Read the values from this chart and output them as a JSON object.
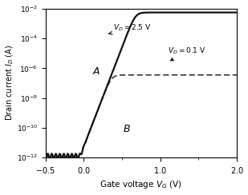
{
  "xlabel": "Gate voltage $V_G$ (V)",
  "ylabel": "Drain current $I_D$ (A)",
  "xlim": [
    -0.5,
    2.0
  ],
  "ylim_log": [
    -12,
    -2
  ],
  "label_A": "A",
  "label_B": "B",
  "label_VD_25": "$V_D=2.5$ V",
  "label_VD_01": "$V_D=0.1$ V",
  "line_color_A": "#111111",
  "line_color_B": "#444444",
  "vth": 0.15,
  "S_slope": 0.075,
  "I_min_A": 1.2e-12,
  "I_sat_A": 0.0055,
  "I_min_B": 1.2e-12,
  "I_sat_B": 3.5e-07
}
